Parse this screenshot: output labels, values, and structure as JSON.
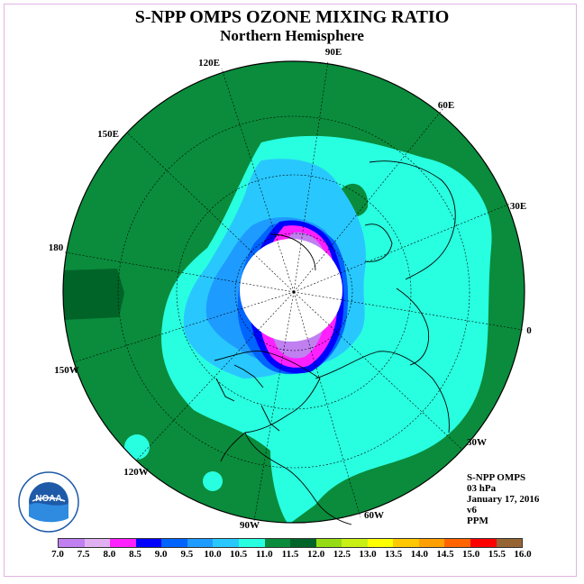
{
  "title": "S-NPP OMPS OZONE MIXING RATIO",
  "subtitle": "Northern Hemisphere",
  "longitude_labels": {
    "e90": "90E",
    "e120": "120E",
    "e60": "60E",
    "e150": "150E",
    "e30": "30E",
    "w180": "180",
    "e0": "0",
    "w150": "150W",
    "w30": "30W",
    "w120": "120W",
    "w60": "60W",
    "w90": "90W"
  },
  "info": {
    "instrument": "S-NPP OMPS",
    "level": "03 hPa",
    "date": "January 17, 2016",
    "version": "v6",
    "units": "PPM"
  },
  "logo_text": "NOAA",
  "colorbar": {
    "ticks": [
      "7.0",
      "7.5",
      "8.0",
      "8.5",
      "9.0",
      "9.5",
      "10.0",
      "10.5",
      "11.0",
      "11.5",
      "12.0",
      "12.5",
      "13.0",
      "13.5",
      "14.0",
      "14.5",
      "15.0",
      "15.5",
      "16.0"
    ],
    "colors": [
      "#c080f0",
      "#e0b0f0",
      "#ff20ff",
      "#0000ff",
      "#0064ff",
      "#1e9bff",
      "#28c8ff",
      "#28ffe0",
      "#0a8c3c",
      "#006428",
      "#96dc14",
      "#c8f014",
      "#ffff00",
      "#ffc800",
      "#ffa000",
      "#ff6400",
      "#ff0000",
      "#966432"
    ]
  }
}
